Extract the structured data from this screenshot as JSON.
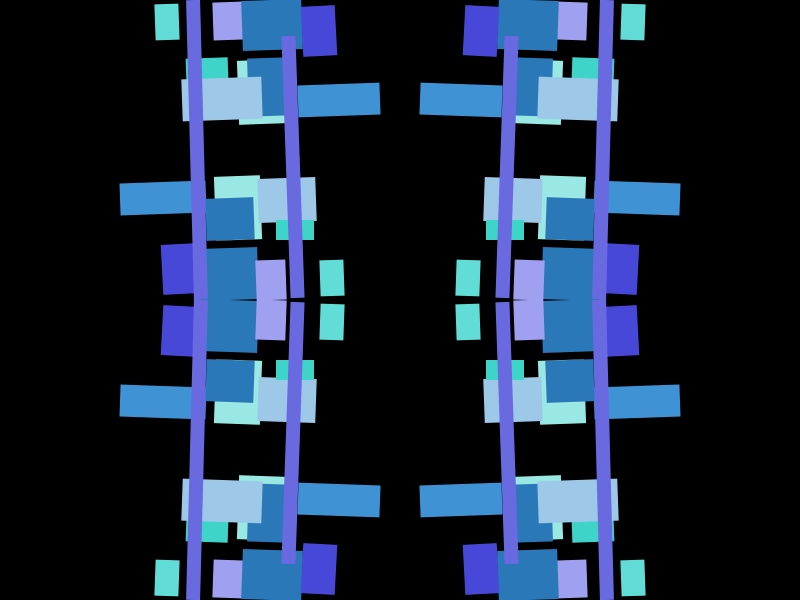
{
  "colors": {
    "background": "#000000",
    "rail": "#6a6ae0",
    "steel": "#2a78b8",
    "bar": "#3f93d4",
    "sky": "#9ec8e8",
    "lavender": "#a0a0f0",
    "aqua": "#62dcd6",
    "pale": "#9ae8e4",
    "teal": "#3ed4c8",
    "indigo": "#4848d8"
  },
  "symmetry": "four-way mirror"
}
